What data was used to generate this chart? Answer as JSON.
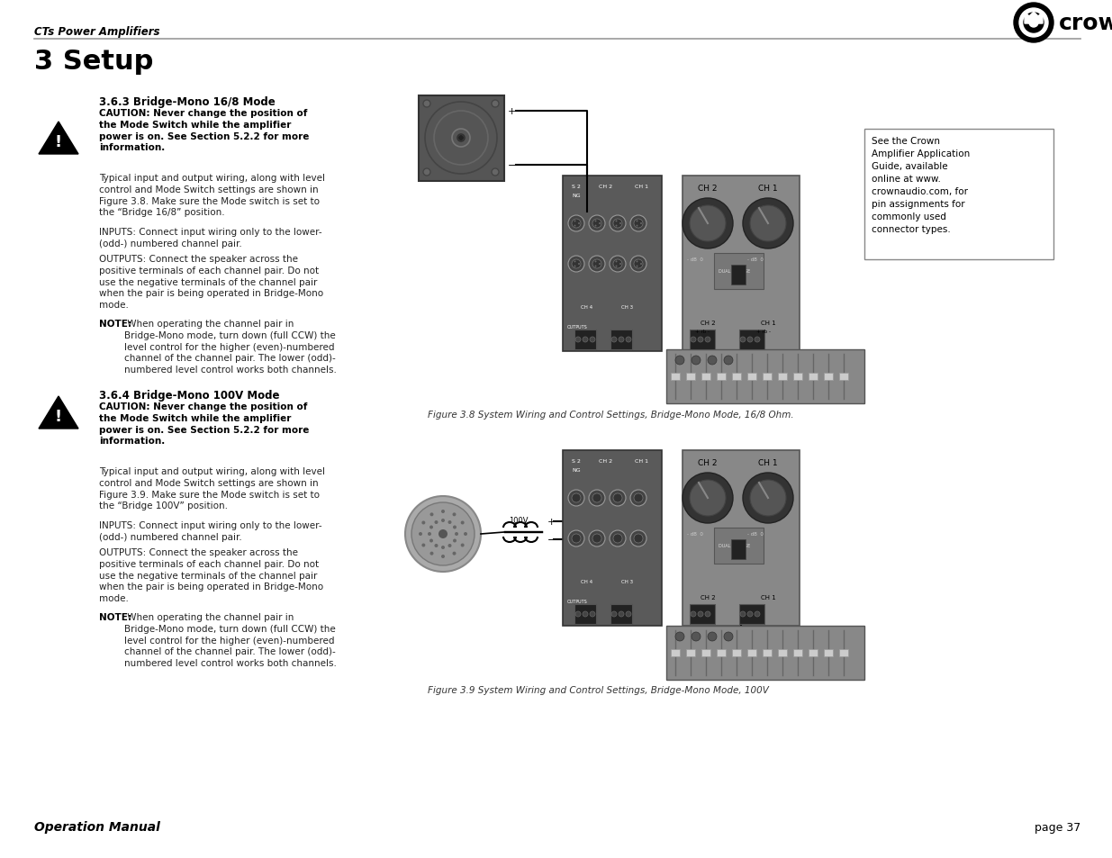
{
  "bg_color": "#ffffff",
  "header_text": "CTs Power Amplifiers",
  "page_num": "page 37",
  "footer_left": "Operation Manual",
  "title": "3 Setup",
  "sec1_heading": "3.6.3 Bridge-Mono 16/8 Mode",
  "sec1_caution_bold": "CAUTION: Never change the position of\nthe Mode Switch while the amplifier\npower is on. See Section 5.2.2 for more\ninformation.",
  "sec1_para1": "Typical input and output wiring, along with level\ncontrol and Mode Switch settings are shown in\nFigure 3.8. Make sure the Mode switch is set to\nthe “Bridge 16/8” position.",
  "sec1_inputs": "INPUTS: Connect input wiring only to the lower-\n(odd-) numbered channel pair.",
  "sec1_outputs": "OUTPUTS: Connect the speaker across the\npositive terminals of each channel pair. Do not\nuse the negative terminals of the channel pair\nwhen the pair is being operated in Bridge-Mono\nmode.",
  "sec1_note_bold": "NOTE:",
  "sec1_note_rest": " When operating the channel pair in\nBridge-Mono mode, turn down (full CCW) the\nlevel control for the higher (even)-numbered\nchannel of the channel pair. The lower (odd)-\nnumbered level control works both channels.",
  "sec2_heading": "3.6.4 Bridge-Mono 100V Mode",
  "sec2_caution_bold": "CAUTION: Never change the position of\nthe Mode Switch while the amplifier\npower is on. See Section 5.2.2 for more\ninformation.",
  "sec2_para1": "Typical input and output wiring, along with level\ncontrol and Mode Switch settings are shown in\nFigure 3.9. Make sure the Mode switch is set to\nthe “Bridge 100V” position.",
  "sec2_inputs": "INPUTS: Connect input wiring only to the lower-\n(odd-) numbered channel pair.",
  "sec2_outputs": "OUTPUTS: Connect the speaker across the\npositive terminals of each channel pair. Do not\nuse the negative terminals of the channel pair\nwhen the pair is being operated in Bridge-Mono\nmode.",
  "sec2_note_bold": "NOTE:",
  "sec2_note_rest": " When operating the channel pair in\nBridge-Mono mode, turn down (full CCW) the\nlevel control for the higher (even)-numbered\nchannel of the channel pair. The lower (odd)-\nnumbered level control works both channels.",
  "fig1_caption": "Figure 3.8 System Wiring and Control Settings, Bridge-Mono Mode, 16/8 Ohm.",
  "fig2_caption": "Figure 3.9 System Wiring and Control Settings, Bridge-Mono Mode, 100V",
  "sidebar_line1": "See the Crown",
  "sidebar_line2": "Amplifier Application",
  "sidebar_line3": "Guide, available",
  "sidebar_line4": "online at www.",
  "sidebar_line5": "crownaudio.com, for",
  "sidebar_line6": "pin assignments for",
  "sidebar_line7": "commonly used",
  "sidebar_line8": "connector types."
}
